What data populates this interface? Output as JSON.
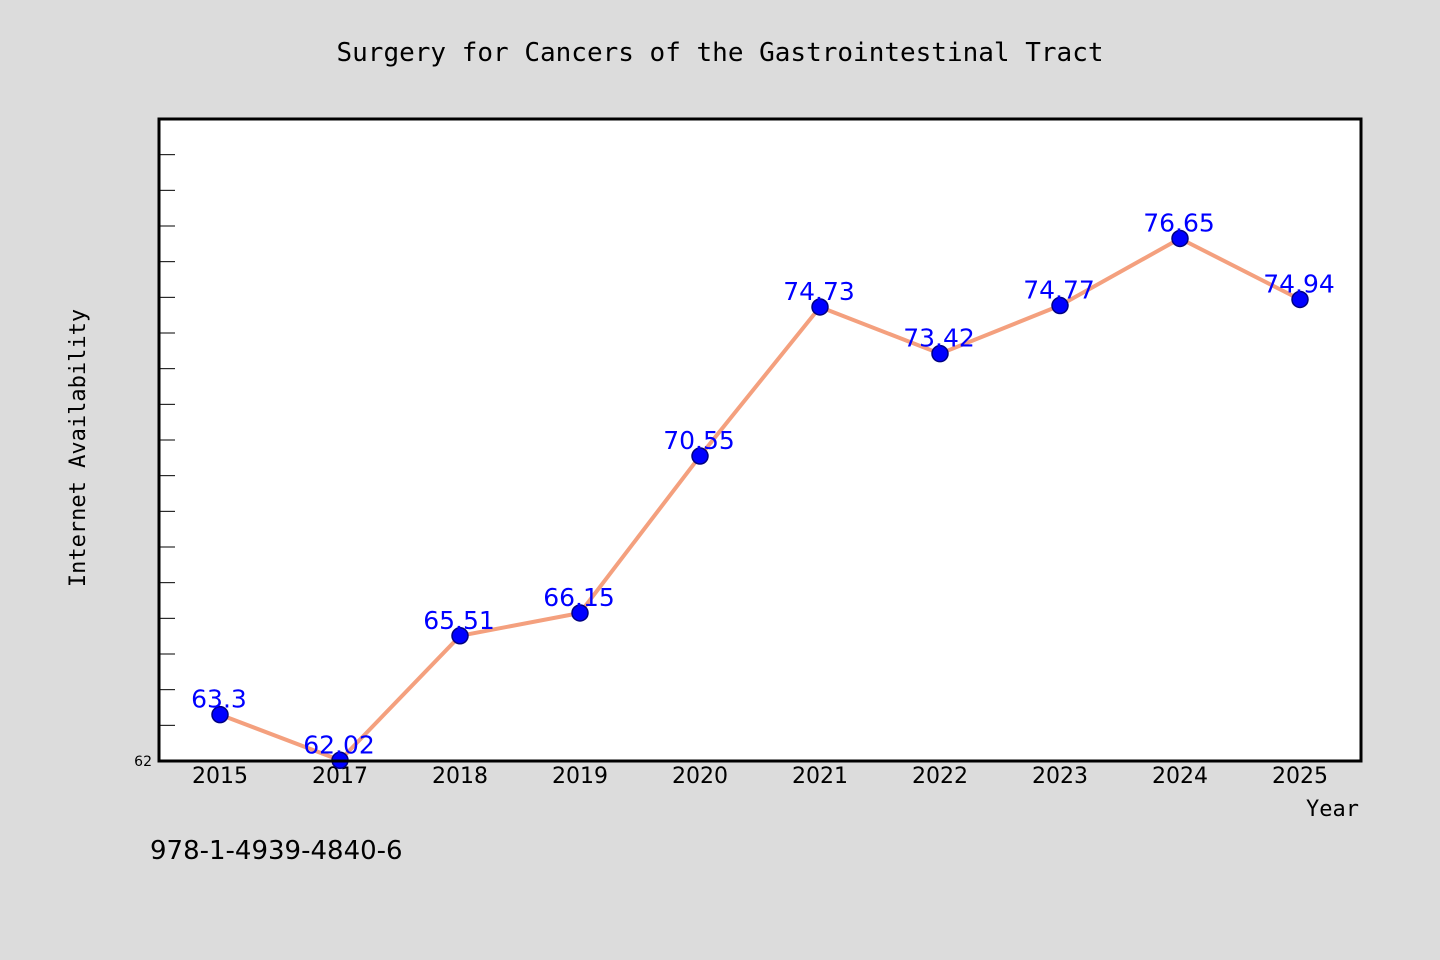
{
  "chart_data": {
    "type": "line",
    "title": "Surgery for Cancers of the Gastrointestinal Tract",
    "xlabel": "Year",
    "ylabel": "Internet Availability",
    "categories": [
      "2015",
      "2017",
      "2018",
      "2019",
      "2020",
      "2021",
      "2022",
      "2023",
      "2024",
      "2025"
    ],
    "series": [
      {
        "values": [
          63.3,
          62.02,
          65.51,
          66.15,
          70.55,
          74.73,
          73.42,
          74.77,
          76.65,
          74.94
        ],
        "labels": [
          "63.3",
          "62.02",
          "65.51",
          "66.15",
          "70.55",
          "74.73",
          "73.42",
          "74.77",
          "76.65",
          "74.94"
        ]
      }
    ],
    "ylim": [
      62,
      80
    ],
    "y_tick_labels": [
      "62"
    ],
    "y_minor_ticks": 18,
    "grid": false,
    "legend": "none"
  },
  "footer": {
    "code": "978-1-4939-4840-6"
  },
  "colors": {
    "background": "#dcdcdc",
    "plot_background": "#ffffff",
    "line": "#f4a07e",
    "marker_fill": "#0000ff",
    "marker_edge": "#000080",
    "data_label": "#0000ff",
    "text": "#000000"
  }
}
